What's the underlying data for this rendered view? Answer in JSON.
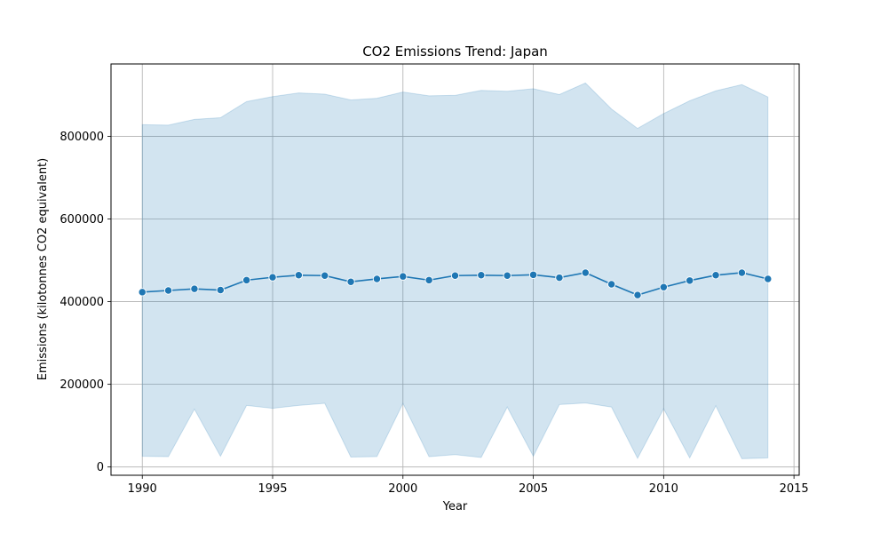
{
  "chart_data": {
    "type": "line",
    "title": "CO2 Emissions Trend: Japan",
    "xlabel": "Year",
    "ylabel": "Emissions (kilotonnes CO2 equivalent)",
    "x": [
      1990,
      1991,
      1992,
      1993,
      1994,
      1995,
      1996,
      1997,
      1998,
      1999,
      2000,
      2001,
      2002,
      2003,
      2004,
      2005,
      2006,
      2007,
      2008,
      2009,
      2010,
      2011,
      2012,
      2013,
      2014
    ],
    "series": [
      {
        "values": [
          423000,
          427000,
          431000,
          428000,
          452000,
          459000,
          464000,
          463000,
          448000,
          455000,
          461000,
          452000,
          463000,
          464000,
          463000,
          465000,
          458000,
          470000,
          442000,
          416000,
          435000,
          451000,
          464000,
          470000,
          455000
        ]
      }
    ],
    "band": {
      "upper": [
        828000,
        827000,
        841000,
        845000,
        884000,
        896000,
        905000,
        902000,
        888000,
        892000,
        907000,
        898000,
        899000,
        911000,
        909000,
        915000,
        901000,
        929000,
        866000,
        819000,
        855000,
        886000,
        910000,
        925000,
        895000
      ],
      "lower": [
        26000,
        25000,
        140000,
        26000,
        149000,
        142000,
        149000,
        154000,
        24000,
        25000,
        154000,
        25000,
        30000,
        23000,
        145000,
        26000,
        151000,
        155000,
        145000,
        21000,
        141000,
        22000,
        148000,
        20000,
        22000
      ]
    },
    "xlim": [
      1988.8,
      2015.2
    ],
    "ylim": [
      -20000,
      975000
    ],
    "xticks": [
      1990,
      1995,
      2000,
      2005,
      2010,
      2015
    ],
    "yticks": [
      0,
      200000,
      400000,
      600000,
      800000
    ],
    "xtick_labels": [
      "1990",
      "1995",
      "2000",
      "2005",
      "2010",
      "2015"
    ],
    "ytick_labels": [
      "0",
      "200000",
      "400000",
      "600000",
      "800000"
    ],
    "grid": true,
    "colors": {
      "line": "#1f77b4",
      "marker_edge": "#ffffff",
      "band": "#1f77b4",
      "grid": "#b0b0b0",
      "axes": "#000000"
    }
  }
}
